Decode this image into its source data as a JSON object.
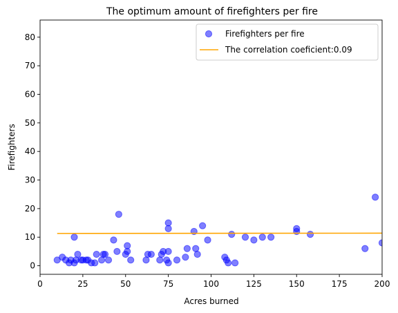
{
  "chart_data": {
    "type": "scatter",
    "title": "The optimum amount of firefighters per fire",
    "xlabel": "Acres burned",
    "ylabel": "Firefighters",
    "xlim": [
      0,
      200
    ],
    "ylim": [
      -3,
      86
    ],
    "xticks": [
      0,
      25,
      50,
      75,
      100,
      125,
      150,
      175,
      200
    ],
    "yticks": [
      0,
      10,
      20,
      30,
      40,
      50,
      60,
      70,
      80
    ],
    "grid": false,
    "legend_position": "top-right",
    "series": [
      {
        "name": "Firefighters per fire",
        "kind": "scatter",
        "color": "#0000ff",
        "points": [
          [
            10,
            2
          ],
          [
            13,
            3
          ],
          [
            15,
            2
          ],
          [
            17,
            1
          ],
          [
            18,
            2
          ],
          [
            20,
            1
          ],
          [
            20,
            10
          ],
          [
            21,
            2
          ],
          [
            22,
            4
          ],
          [
            24,
            2
          ],
          [
            25,
            2
          ],
          [
            27,
            2
          ],
          [
            28,
            2
          ],
          [
            30,
            1
          ],
          [
            32,
            1
          ],
          [
            33,
            4
          ],
          [
            36,
            2
          ],
          [
            37,
            4
          ],
          [
            38,
            4
          ],
          [
            40,
            2
          ],
          [
            43,
            9
          ],
          [
            45,
            5
          ],
          [
            46,
            18
          ],
          [
            50,
            4
          ],
          [
            51,
            5
          ],
          [
            51,
            7
          ],
          [
            53,
            2
          ],
          [
            62,
            2
          ],
          [
            63,
            4
          ],
          [
            65,
            4
          ],
          [
            70,
            2
          ],
          [
            71,
            4
          ],
          [
            72,
            5
          ],
          [
            74,
            2
          ],
          [
            75,
            1
          ],
          [
            75,
            5
          ],
          [
            75,
            13
          ],
          [
            75,
            15
          ],
          [
            80,
            2
          ],
          [
            85,
            3
          ],
          [
            86,
            6
          ],
          [
            90,
            12
          ],
          [
            91,
            6
          ],
          [
            92,
            4
          ],
          [
            95,
            14
          ],
          [
            98,
            9
          ],
          [
            108,
            3
          ],
          [
            109,
            2
          ],
          [
            110,
            1
          ],
          [
            112,
            11
          ],
          [
            114,
            1
          ],
          [
            120,
            10
          ],
          [
            125,
            9
          ],
          [
            130,
            10
          ],
          [
            135,
            10
          ],
          [
            150,
            12
          ],
          [
            150,
            13
          ],
          [
            158,
            11
          ],
          [
            190,
            6
          ],
          [
            196,
            24
          ],
          [
            200,
            8
          ]
        ]
      },
      {
        "name": "The correlation coeficient:0.09",
        "kind": "line",
        "color": "#ffa500",
        "points": [
          [
            10,
            11.3
          ],
          [
            200,
            11.4
          ]
        ]
      }
    ]
  }
}
